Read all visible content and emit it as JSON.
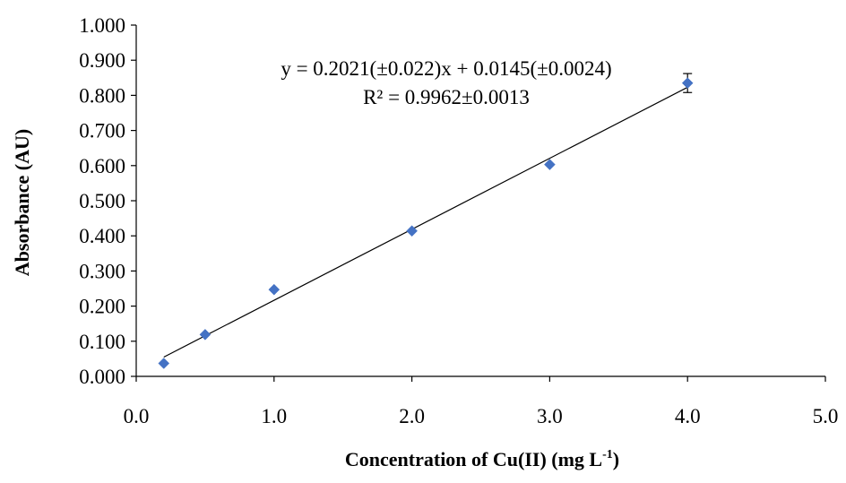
{
  "chart_data": {
    "type": "scatter",
    "title": "",
    "xlabel": "Concentration of Cu(II) (mg L",
    "xlabel_superscript": "-1",
    "xlabel_suffix": ")",
    "ylabel": "Absorbance (AU)",
    "xlim": [
      0.0,
      5.0
    ],
    "ylim": [
      0.0,
      1.0
    ],
    "x_ticks": [
      "0.0",
      "1.0",
      "2.0",
      "3.0",
      "4.0",
      "5.0"
    ],
    "y_ticks": [
      "0.000",
      "0.100",
      "0.200",
      "0.300",
      "0.400",
      "0.500",
      "0.600",
      "0.700",
      "0.800",
      "0.900",
      "1.000"
    ],
    "grid": false,
    "legend": "none",
    "marker_color": "#4472C4",
    "line_color": "#000000",
    "series": [
      {
        "x": [
          0.2,
          0.5,
          1.0,
          2.0,
          3.0,
          4.0
        ],
        "y": [
          0.037,
          0.119,
          0.247,
          0.414,
          0.603,
          0.835
        ],
        "yerr": [
          0.0,
          0.0,
          0.0,
          0.0,
          0.0,
          0.027
        ]
      }
    ],
    "trendline": {
      "slope": 0.2021,
      "intercept": 0.0145,
      "x_range": [
        0.2,
        4.0
      ]
    },
    "annotations": {
      "equation": "y = 0.2021(±0.022)x + 0.0145(±0.0024)",
      "r_squared": "R² = 0.9962±0.0013"
    }
  }
}
